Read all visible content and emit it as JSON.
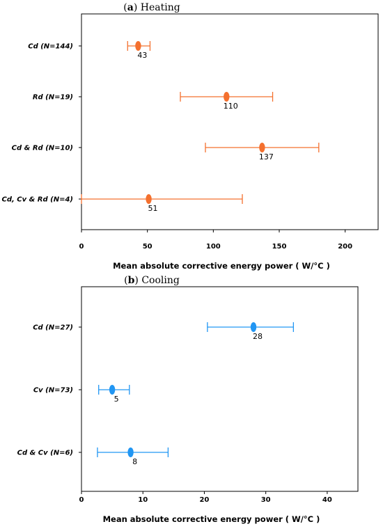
{
  "chart_data": [
    {
      "type": "scatter",
      "panel_letter": "a",
      "title": "Heating",
      "xlabel": "Mean absolute corrective energy power ( W/°C )",
      "xlim": [
        0,
        225
      ],
      "xticks": [
        "0",
        "50",
        "100",
        "150",
        "200"
      ],
      "xtick_values": [
        0,
        50,
        100,
        150,
        200
      ],
      "color": "#f4702e",
      "categories": [
        "Cd (N=144)",
        "Rd (N=19)",
        "Cd & Rd (N=10)",
        "Cd, Cv & Rd (N=4)"
      ],
      "values": [
        43,
        110,
        137,
        51
      ],
      "labels": [
        "43",
        "110",
        "137",
        "51"
      ],
      "lower": [
        35,
        75,
        94,
        0
      ],
      "upper": [
        52,
        145,
        180,
        122
      ]
    },
    {
      "type": "scatter",
      "panel_letter": "b",
      "title": "Cooling",
      "xlabel": "Mean absolute corrective energy power ( W/°C )",
      "xlim": [
        0,
        45
      ],
      "xticks": [
        "0",
        "10",
        "20",
        "30",
        "40"
      ],
      "xtick_values": [
        0,
        10,
        20,
        30,
        40
      ],
      "color": "#2196f3",
      "categories": [
        "Cd (N=27)",
        "Cv (N=73)",
        "Cd & Cv (N=6)"
      ],
      "values": [
        28,
        5,
        8
      ],
      "labels": [
        "28",
        "5",
        "8"
      ],
      "lower": [
        20.5,
        2.8,
        2.6
      ],
      "upper": [
        34.5,
        7.8,
        14.1
      ]
    }
  ]
}
